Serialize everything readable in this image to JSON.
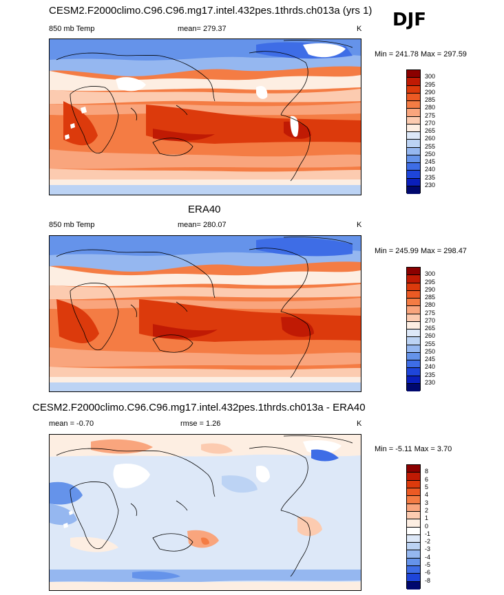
{
  "season": "DJF",
  "panels": [
    {
      "title": "CESM2.F2000climo.C96.C96.mg17.intel.432pes.1thrds.ch013a (yrs 1)",
      "variable": "850 mb Temp",
      "stats": "mean= 279.37",
      "units": "K",
      "minmax": "Min = 241.78 Max = 297.59",
      "colorbar": {
        "labels": [
          "300",
          "295",
          "290",
          "285",
          "280",
          "275",
          "270",
          "265",
          "260",
          "255",
          "250",
          "245",
          "240",
          "235",
          "230"
        ],
        "colors": [
          "#8b0000",
          "#c01a04",
          "#dc3a0c",
          "#ec5a24",
          "#f47c44",
          "#f9a57d",
          "#fccbb0",
          "#fdeee2",
          "#dde8f8",
          "#bcd3f4",
          "#95b7f0",
          "#6593ea",
          "#3e6de6",
          "#1e45da",
          "#0a1fbc",
          "#00086e"
        ]
      }
    },
    {
      "title": "ERA40",
      "variable": "850 mb Temp",
      "stats": "mean= 280.07",
      "units": "K",
      "minmax": "Min = 245.99 Max = 298.47",
      "colorbar": {
        "labels": [
          "300",
          "295",
          "290",
          "285",
          "280",
          "275",
          "270",
          "265",
          "260",
          "255",
          "250",
          "245",
          "240",
          "235",
          "230"
        ],
        "colors": [
          "#8b0000",
          "#c01a04",
          "#dc3a0c",
          "#ec5a24",
          "#f47c44",
          "#f9a57d",
          "#fccbb0",
          "#fdeee2",
          "#dde8f8",
          "#bcd3f4",
          "#95b7f0",
          "#6593ea",
          "#3e6de6",
          "#1e45da",
          "#0a1fbc",
          "#00086e"
        ]
      }
    },
    {
      "title": "CESM2.F2000climo.C96.C96.mg17.intel.432pes.1thrds.ch013a - ERA40",
      "stats_left": "mean =  -0.70",
      "stats": "rmse =   1.26",
      "units": "K",
      "minmax": "Min =  -5.11 Max =   3.70",
      "colorbar": {
        "labels": [
          "8",
          "6",
          "5",
          "4",
          "3",
          "2",
          "1",
          "0",
          "-1",
          "-2",
          "-3",
          "-4",
          "-5",
          "-6",
          "-8"
        ],
        "colors": [
          "#8b0000",
          "#c01a04",
          "#dc3a0c",
          "#ec5a24",
          "#f47c44",
          "#f9a57d",
          "#fccbb0",
          "#fdeee2",
          "#ffffff",
          "#dde8f8",
          "#bcd3f4",
          "#95b7f0",
          "#6593ea",
          "#3e6de6",
          "#1e45da",
          "#00086e"
        ]
      }
    }
  ]
}
